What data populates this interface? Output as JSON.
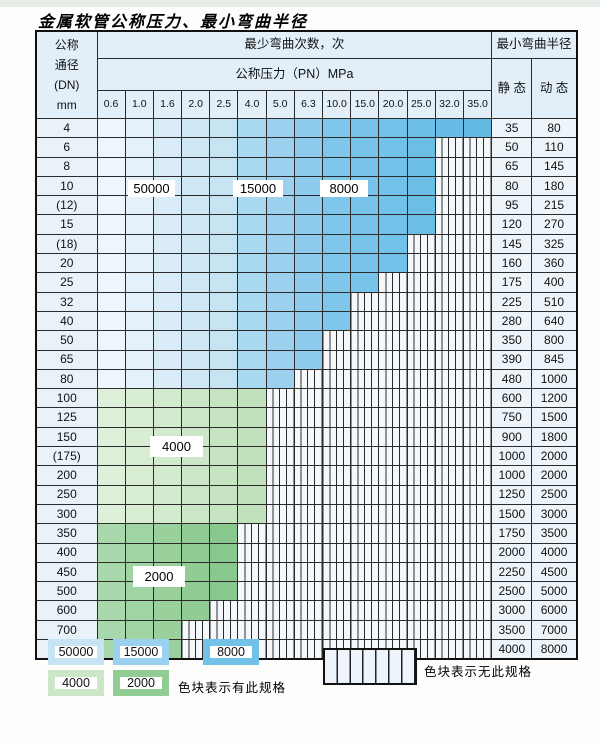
{
  "title": "金属软管公称压力、最小弯曲半径",
  "table": {
    "dn_header_lines": [
      "公称",
      "通径",
      "(DN)",
      "mm"
    ],
    "cycles_header": "最少弯曲次数，次",
    "pressure_header": "公称压力（PN）MPa",
    "radius_header": "最小弯曲半径",
    "static_header": "静 态",
    "dynamic_header": "动 态",
    "pressures": [
      "0.6",
      "1.0",
      "1.6",
      "2.0",
      "2.5",
      "4.0",
      "5.0",
      "6.3",
      "10.0",
      "15.0",
      "20.0",
      "25.0",
      "32.0",
      "35.0"
    ],
    "rows": [
      {
        "dn": "4",
        "band": "blue",
        "max": 14,
        "static": "35",
        "dynamic": "80"
      },
      {
        "dn": "6",
        "band": "blue",
        "max": 12,
        "static": "50",
        "dynamic": "110"
      },
      {
        "dn": "8",
        "band": "blue",
        "max": 12,
        "static": "65",
        "dynamic": "145"
      },
      {
        "dn": "10",
        "band": "blue",
        "max": 12,
        "static": "80",
        "dynamic": "180"
      },
      {
        "dn": "(12)",
        "band": "blue",
        "max": 12,
        "static": "95",
        "dynamic": "215"
      },
      {
        "dn": "15",
        "band": "blue",
        "max": 12,
        "static": "120",
        "dynamic": "270"
      },
      {
        "dn": "(18)",
        "band": "blue",
        "max": 11,
        "static": "145",
        "dynamic": "325"
      },
      {
        "dn": "20",
        "band": "blue",
        "max": 11,
        "static": "160",
        "dynamic": "360"
      },
      {
        "dn": "25",
        "band": "blue",
        "max": 10,
        "static": "175",
        "dynamic": "400"
      },
      {
        "dn": "32",
        "band": "blue",
        "max": 9,
        "static": "225",
        "dynamic": "510"
      },
      {
        "dn": "40",
        "band": "blue",
        "max": 9,
        "static": "280",
        "dynamic": "640"
      },
      {
        "dn": "50",
        "band": "blue",
        "max": 8,
        "static": "350",
        "dynamic": "800"
      },
      {
        "dn": "65",
        "band": "blue",
        "max": 8,
        "static": "390",
        "dynamic": "845"
      },
      {
        "dn": "80",
        "band": "blue",
        "max": 7,
        "static": "480",
        "dynamic": "1000"
      },
      {
        "dn": "100",
        "band": "g4000",
        "max": 6,
        "static": "600",
        "dynamic": "1200"
      },
      {
        "dn": "125",
        "band": "g4000",
        "max": 6,
        "static": "750",
        "dynamic": "1500"
      },
      {
        "dn": "150",
        "band": "g4000",
        "max": 6,
        "static": "900",
        "dynamic": "1800"
      },
      {
        "dn": "(175)",
        "band": "g4000",
        "max": 6,
        "static": "1000",
        "dynamic": "2000"
      },
      {
        "dn": "200",
        "band": "g4000",
        "max": 6,
        "static": "1000",
        "dynamic": "2000"
      },
      {
        "dn": "250",
        "band": "g4000",
        "max": 6,
        "static": "1250",
        "dynamic": "2500"
      },
      {
        "dn": "300",
        "band": "g4000",
        "max": 6,
        "static": "1500",
        "dynamic": "3000"
      },
      {
        "dn": "350",
        "band": "g2000",
        "max": 5,
        "static": "1750",
        "dynamic": "3500"
      },
      {
        "dn": "400",
        "band": "g2000",
        "max": 5,
        "static": "2000",
        "dynamic": "4000"
      },
      {
        "dn": "450",
        "band": "g2000",
        "max": 5,
        "static": "2250",
        "dynamic": "4500"
      },
      {
        "dn": "500",
        "band": "g2000",
        "max": 5,
        "static": "2500",
        "dynamic": "5000"
      },
      {
        "dn": "600",
        "band": "g2000",
        "max": 4,
        "static": "3000",
        "dynamic": "6000"
      },
      {
        "dn": "700",
        "band": "g2000",
        "max": 3,
        "static": "3500",
        "dynamic": "7000"
      },
      {
        "dn": "800",
        "band": "g2000",
        "max": 3,
        "static": "4000",
        "dynamic": "8000"
      }
    ]
  },
  "legend": {
    "items": [
      {
        "label": "50000",
        "color": "#c7e4f3"
      },
      {
        "label": "15000",
        "color": "#9bd1ee"
      },
      {
        "label": "8000",
        "color": "#72c1e8"
      },
      {
        "label": "4000",
        "color": "#cce7c7"
      },
      {
        "label": "2000",
        "color": "#91cc94"
      }
    ],
    "has_spec": "色块表示有此规格",
    "no_spec": "色块表示无此规格"
  },
  "colors": {
    "band_shades": {
      "b50000": [
        "#eef6fc",
        "#e4f1fa",
        "#daecf7",
        "#d0e8f5",
        "#c7e4f3"
      ],
      "b15000": [
        "#a9d8f1",
        "#9bd1ee",
        "#8ecaeb"
      ],
      "b8000": [
        "#7ec6ea",
        "#78c3e9",
        "#72c1e8",
        "#6cbee7",
        "#66bce6",
        "#61b9e4"
      ],
      "g4000": [
        "#def0d9",
        "#d8edd3",
        "#d2eacd",
        "#cce7c7",
        "#c6e4c1",
        "#c0e1bb"
      ],
      "g2000": [
        "#a9d8ac",
        "#a1d4a4",
        "#99d09c",
        "#91cc94",
        "#89c88c"
      ]
    },
    "grid_line": "#2b2b2b",
    "striped_bg": "#f4f8fb",
    "header_bg": "#e3eff8"
  }
}
